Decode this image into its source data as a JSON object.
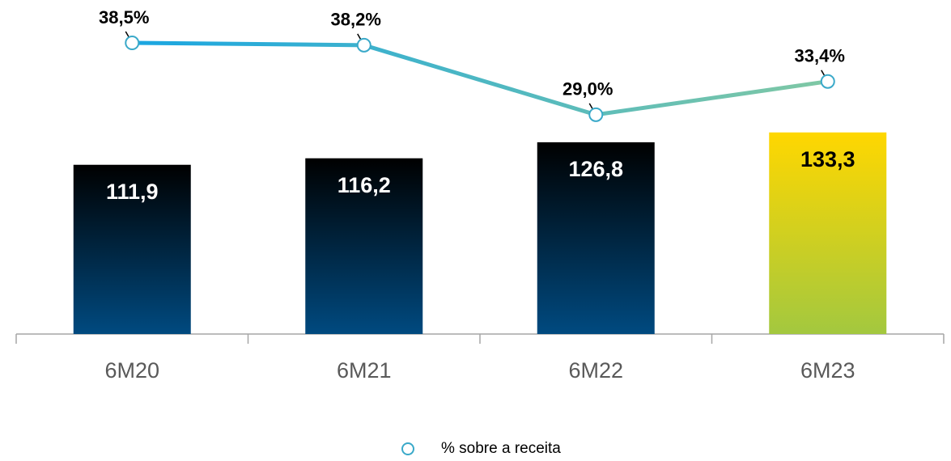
{
  "chart_data": {
    "type": "bar_line",
    "categories": [
      "6M20",
      "6M21",
      "6M22",
      "6M23"
    ],
    "series": [
      {
        "type": "bar",
        "values": [
          111.9,
          116.2,
          126.8,
          133.3
        ],
        "value_labels": [
          "111,9",
          "116,2",
          "126,8",
          "133,3"
        ],
        "colors": [
          [
            "#000000",
            "#004a80"
          ],
          [
            "#000000",
            "#004a80"
          ],
          [
            "#000000",
            "#004a80"
          ],
          [
            "#ffd700",
            "#a3c83f"
          ]
        ],
        "value_label_colors": [
          "#ffffff",
          "#ffffff",
          "#ffffff",
          "#000000"
        ]
      },
      {
        "type": "line",
        "axis": "y2",
        "name": "% sobre a receita",
        "values": [
          38.5,
          38.2,
          29.0,
          33.4
        ],
        "value_labels": [
          "38,5%",
          "38,2%",
          "29,0%",
          "33,4%"
        ],
        "color": [
          "#1aa6e2",
          "#80c8a4"
        ]
      }
    ],
    "ylim": [
      0,
      200
    ],
    "y2lim": [
      0,
      40
    ],
    "legend": "bottom"
  }
}
